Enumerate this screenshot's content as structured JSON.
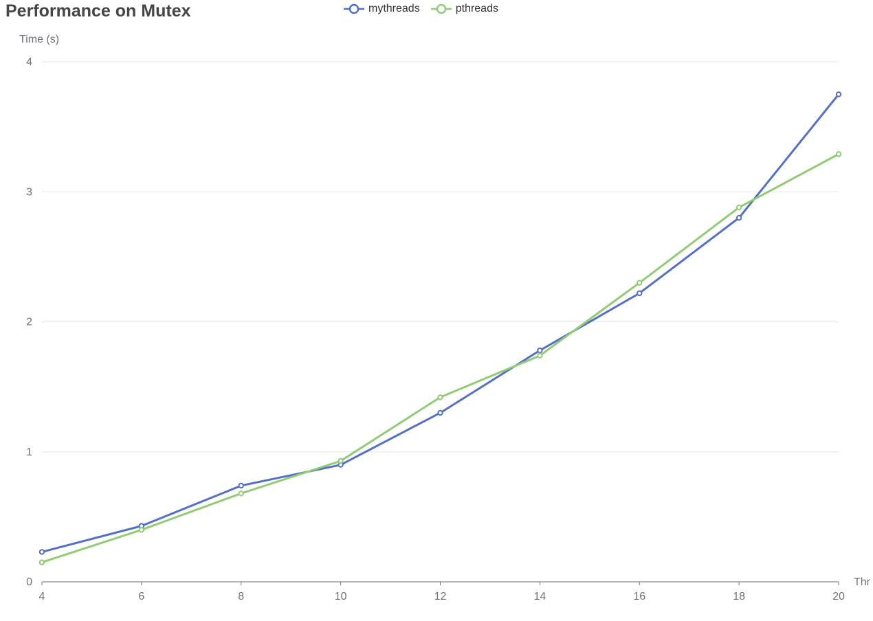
{
  "chart_data": {
    "type": "line",
    "title": "Performance on Mutex",
    "ylabel": "Time (s)",
    "xlabel": "Thr",
    "x": [
      4,
      6,
      8,
      10,
      12,
      14,
      16,
      18,
      20
    ],
    "xlim": [
      4,
      20
    ],
    "ylim": [
      0,
      4
    ],
    "yticks": [
      0,
      1,
      2,
      3,
      4
    ],
    "xticks": [
      4,
      6,
      8,
      10,
      12,
      14,
      16,
      18,
      20
    ],
    "grid": "horizontal",
    "legend": "top-center",
    "series": [
      {
        "name": "mythreads",
        "color": "#5470c6",
        "values": [
          0.23,
          0.43,
          0.74,
          0.9,
          1.3,
          1.78,
          2.22,
          2.8,
          3.75
        ]
      },
      {
        "name": "pthreads",
        "color": "#91cc75",
        "values": [
          0.15,
          0.4,
          0.68,
          0.93,
          1.42,
          1.74,
          2.3,
          2.88,
          3.29
        ]
      }
    ]
  }
}
